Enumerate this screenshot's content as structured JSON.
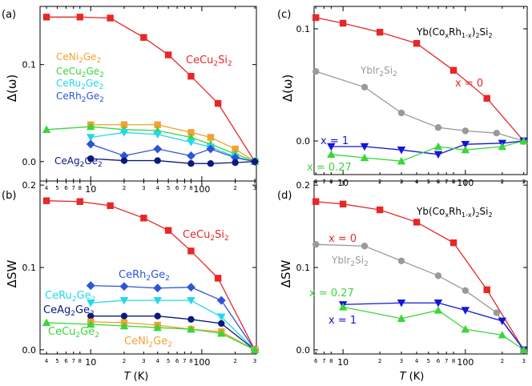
{
  "figure": {
    "x_axis_label": "T (K)",
    "x_var": "T",
    "x_unit": "(K)"
  },
  "chart_data": [
    {
      "id": "a",
      "type": "line",
      "panel_label": "(a)",
      "ylabel": "Δ(ω)",
      "xscale": "log",
      "xlim": [
        3.5,
        310
      ],
      "ylim": [
        -0.02,
        0.16
      ],
      "yticks": [
        0.0,
        0.1
      ],
      "ytick_labels": [
        "0.0",
        "0.1"
      ],
      "xticks": [
        4,
        5,
        6,
        7,
        8,
        10,
        20,
        30,
        40,
        50,
        60,
        70,
        80,
        100,
        200,
        300
      ],
      "xtick_labels": [
        "4",
        "5",
        "6",
        "7",
        "8",
        "10",
        "2",
        "3",
        "4",
        "5",
        "6",
        "7",
        "8",
        "100",
        "2",
        "3"
      ],
      "series": [
        {
          "name": "CeCu2Si2",
          "label_main": "CeCu",
          "label_sub": "2",
          "label_main2": "Si",
          "label_sub2": "2",
          "color": "#e82727",
          "marker": "square",
          "x": [
            4,
            8,
            15,
            30,
            50,
            80,
            140,
            300
          ],
          "y": [
            0.149,
            0.149,
            0.148,
            0.128,
            0.11,
            0.088,
            0.06,
            0.0
          ]
        },
        {
          "name": "CeNi2Ge2",
          "label_main": "CeNi",
          "label_sub": "2",
          "label_main2": "Ge",
          "label_sub2": "2",
          "color": "#f5a030",
          "marker": "square",
          "x": [
            10,
            20,
            40,
            80,
            120,
            200,
            300
          ],
          "y": [
            0.038,
            0.038,
            0.038,
            0.03,
            0.025,
            0.013,
            0.0
          ]
        },
        {
          "name": "CeCu2Ge2",
          "label_main": "CeCu",
          "label_sub": "2",
          "label_main2": "Ge",
          "label_sub2": "2",
          "color": "#3ad63a",
          "marker": "triangle-up",
          "x": [
            4,
            10,
            20,
            40,
            80,
            120,
            200,
            300
          ],
          "y": [
            0.033,
            0.036,
            0.033,
            0.032,
            0.025,
            0.018,
            0.008,
            0.0
          ]
        },
        {
          "name": "CeRu2Ge2",
          "label_main": "CeRu",
          "label_sub": "2",
          "label_main2": "Ge",
          "label_sub2": "2",
          "color": "#22d8ee",
          "marker": "triangle-down",
          "x": [
            10,
            20,
            40,
            80,
            120,
            200,
            300
          ],
          "y": [
            0.025,
            0.03,
            0.028,
            0.02,
            0.015,
            0.005,
            0.0
          ]
        },
        {
          "name": "CeRh2Ge2",
          "label_main": "CeRh",
          "label_sub": "2",
          "label_main2": "Ge",
          "label_sub2": "2",
          "color": "#2e55d6",
          "marker": "diamond",
          "x": [
            10,
            20,
            40,
            80,
            120,
            200,
            300
          ],
          "y": [
            0.018,
            0.006,
            0.013,
            0.006,
            0.013,
            0.004,
            0.0
          ]
        },
        {
          "name": "CeAg2Ge2",
          "label_main": "CeAg",
          "label_sub": "2",
          "label_main2": "Ge",
          "label_sub2": "2",
          "color": "#0c1a7c",
          "marker": "circle",
          "x": [
            10,
            20,
            40,
            80,
            120,
            200,
            300
          ],
          "y": [
            0.003,
            0.001,
            0.001,
            -0.002,
            -0.002,
            -0.001,
            0.0
          ]
        }
      ]
    },
    {
      "id": "b",
      "type": "line",
      "panel_label": "(b)",
      "ylabel": "ΔSW",
      "xscale": "log",
      "xlim": [
        3.5,
        310
      ],
      "ylim": [
        -0.005,
        0.205
      ],
      "yticks": [
        0.0,
        0.1,
        0.2
      ],
      "ytick_labels": [
        "0.0",
        "0.1",
        "0.2"
      ],
      "xticks": [
        4,
        5,
        6,
        7,
        8,
        10,
        20,
        30,
        40,
        50,
        60,
        70,
        80,
        100,
        200,
        300
      ],
      "xtick_labels": [
        "4",
        "5",
        "6",
        "7",
        "8",
        "10",
        "2",
        "3",
        "4",
        "5",
        "6",
        "7",
        "8",
        "100",
        "2",
        "3"
      ],
      "series": [
        {
          "name": "CeCu2Si2",
          "label_main": "CeCu",
          "label_sub": "2",
          "label_main2": "Si",
          "label_sub2": "2",
          "color": "#e82727",
          "marker": "square",
          "x": [
            4,
            8,
            15,
            30,
            50,
            80,
            140,
            300
          ],
          "y": [
            0.181,
            0.18,
            0.175,
            0.16,
            0.145,
            0.12,
            0.087,
            0.0
          ]
        },
        {
          "name": "CeRh2Ge2",
          "label_main": "CeRh",
          "label_sub": "2",
          "label_main2": "Ge",
          "label_sub2": "2",
          "color": "#2e55d6",
          "marker": "diamond",
          "x": [
            10,
            20,
            40,
            80,
            150,
            300
          ],
          "y": [
            0.078,
            0.077,
            0.075,
            0.076,
            0.06,
            0.0
          ]
        },
        {
          "name": "CeRu2Ge2",
          "label_main": "CeRu",
          "label_sub": "2",
          "label_main2": "Ge",
          "label_sub2": "2",
          "color": "#22d8ee",
          "marker": "triangle-down",
          "x": [
            10,
            20,
            40,
            80,
            150,
            300
          ],
          "y": [
            0.057,
            0.06,
            0.06,
            0.06,
            0.04,
            0.0
          ]
        },
        {
          "name": "CeAg2Ge2",
          "label_main": "CeAg",
          "label_sub": "2",
          "label_main2": "Ge",
          "label_sub2": "2",
          "color": "#0c1a7c",
          "marker": "circle",
          "x": [
            10,
            20,
            40,
            80,
            150,
            300
          ],
          "y": [
            0.041,
            0.041,
            0.041,
            0.037,
            0.032,
            0.0
          ]
        },
        {
          "name": "CeNi2Ge2",
          "label_main": "CeNi",
          "label_sub": "2",
          "label_main2": "Ge",
          "label_sub2": "2",
          "color": "#f5a030",
          "marker": "square",
          "x": [
            10,
            20,
            40,
            80,
            150,
            300
          ],
          "y": [
            0.034,
            0.033,
            0.03,
            0.025,
            0.022,
            0.0
          ]
        },
        {
          "name": "CeCu2Ge2",
          "label_main": "CeCu",
          "label_sub": "2",
          "label_main2": "Ge",
          "label_sub2": "2",
          "color": "#3ad63a",
          "marker": "triangle-up",
          "x": [
            4,
            10,
            20,
            40,
            80,
            150,
            300
          ],
          "y": [
            0.033,
            0.031,
            0.029,
            0.027,
            0.025,
            0.02,
            0.0
          ]
        }
      ]
    },
    {
      "id": "c",
      "type": "line",
      "panel_label": "(c)",
      "ylabel": "Δ(ω)",
      "title": {
        "main": "Yb(Co",
        "sub1": "x",
        "mid": "Rh",
        "sub2": "1-x",
        "close": ")",
        "sub3": "2",
        "end": "Si",
        "sub4": "2"
      },
      "xscale": "log",
      "xlim": [
        5.8,
        320
      ],
      "ylim": [
        -0.03,
        0.12
      ],
      "yticks": [
        0.0,
        0.1
      ],
      "ytick_labels": [
        "0.0",
        "0.1"
      ],
      "xticks": [
        6,
        7,
        8,
        10,
        20,
        30,
        40,
        50,
        60,
        70,
        80,
        100,
        200,
        300
      ],
      "xtick_labels": [
        "6",
        "7",
        "8",
        "10",
        "2",
        "3",
        "4",
        "5",
        "6",
        "7",
        "8",
        "100",
        "2",
        "3"
      ],
      "series": [
        {
          "name": "x = 0",
          "label_main": "x = 0",
          "color": "#e82727",
          "marker": "square",
          "x": [
            6,
            10,
            20,
            40,
            80,
            150,
            300
          ],
          "y": [
            0.11,
            0.105,
            0.097,
            0.087,
            0.063,
            0.038,
            0.0
          ]
        },
        {
          "name": "YbIr2Si2",
          "label_main": "YbIr",
          "label_sub": "2",
          "label_main2": "Si",
          "label_sub2": "2",
          "color": "#9a9a9a",
          "marker": "circle",
          "x": [
            6,
            15,
            30,
            60,
            100,
            180,
            300
          ],
          "y": [
            0.062,
            0.048,
            0.025,
            0.012,
            0.009,
            0.007,
            0.0
          ]
        },
        {
          "name": "x = 1",
          "label_main": "x = 1",
          "color": "#1515d8",
          "marker": "triangle-down",
          "x": [
            8,
            15,
            30,
            60,
            100,
            200,
            300
          ],
          "y": [
            -0.005,
            -0.005,
            -0.008,
            -0.012,
            -0.003,
            -0.002,
            0.0
          ]
        },
        {
          "name": "x = 0.27",
          "label_main": "x = 0.27",
          "color": "#3ad63a",
          "marker": "triangle-up",
          "x": [
            8,
            15,
            30,
            60,
            100,
            200,
            300
          ],
          "y": [
            -0.012,
            -0.015,
            -0.018,
            -0.005,
            -0.008,
            -0.005,
            0.0
          ]
        }
      ]
    },
    {
      "id": "d",
      "type": "line",
      "panel_label": "(d)",
      "ylabel": "ΔSW",
      "title": {
        "main": "Yb(Co",
        "sub1": "x",
        "mid": "Rh",
        "sub2": "1-x",
        "close": ")",
        "sub3": "2",
        "end": "Si",
        "sub4": "2"
      },
      "xscale": "log",
      "xlim": [
        5.8,
        320
      ],
      "ylim": [
        -0.005,
        0.205
      ],
      "yticks": [
        0.0,
        0.1,
        0.2
      ],
      "ytick_labels": [
        "0.0",
        "0.1",
        "0.2"
      ],
      "xticks": [
        6,
        7,
        8,
        10,
        20,
        30,
        40,
        50,
        60,
        70,
        80,
        100,
        200,
        300
      ],
      "xtick_labels": [
        "6",
        "7",
        "8",
        "10",
        "2",
        "3",
        "4",
        "5",
        "6",
        "7",
        "8",
        "100",
        "2",
        "3"
      ],
      "series": [
        {
          "name": "x = 0",
          "label_main": "x = 0",
          "color": "#e82727",
          "marker": "square",
          "x": [
            6,
            10,
            20,
            40,
            80,
            150,
            300
          ],
          "y": [
            0.18,
            0.177,
            0.17,
            0.155,
            0.13,
            0.073,
            0.0
          ]
        },
        {
          "name": "YbIr2Si2",
          "label_main": "YbIr",
          "label_sub": "2",
          "label_main2": "Si",
          "label_sub2": "2",
          "color": "#9a9a9a",
          "marker": "circle",
          "x": [
            6,
            15,
            30,
            60,
            100,
            180,
            300
          ],
          "y": [
            0.128,
            0.126,
            0.108,
            0.09,
            0.072,
            0.045,
            0.0
          ]
        },
        {
          "name": "x = 1",
          "label_main": "x = 1",
          "color": "#1515d8",
          "marker": "triangle-down",
          "x": [
            10,
            30,
            60,
            100,
            200,
            300
          ],
          "y": [
            0.055,
            0.057,
            0.057,
            0.048,
            0.035,
            0.0
          ]
        },
        {
          "name": "x = 0.27",
          "label_main": "x = 0.27",
          "color": "#3ad63a",
          "marker": "triangle-up",
          "x": [
            10,
            30,
            60,
            100,
            200,
            300
          ],
          "y": [
            0.052,
            0.038,
            0.048,
            0.025,
            0.018,
            0.0
          ]
        }
      ]
    }
  ]
}
